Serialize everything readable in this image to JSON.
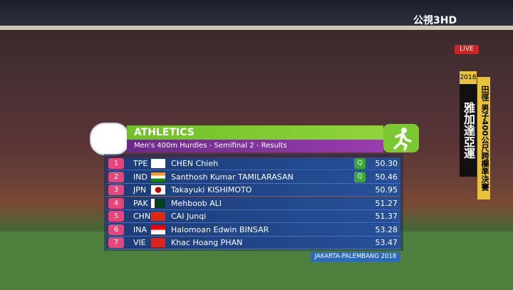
{
  "broadcast": {
    "channel": "公視3HD",
    "live": "LIVE",
    "year": "2018",
    "games": "雅加達亞運",
    "event": "田徑 男子400公尺跨欄準決賽"
  },
  "header": {
    "title": "ATHLETICS",
    "subtitle": "Men's 400m Hurdles - Semifinal 2 - Results"
  },
  "table": {
    "rows": [
      {
        "rank": 1,
        "country": "TPE",
        "name": "CHEN Chieh",
        "qualified": "Q",
        "time": "50.30"
      },
      {
        "rank": 2,
        "country": "IND",
        "name": "Santhosh Kumar TAMILARASAN",
        "qualified": "Q",
        "time": "50.46"
      },
      {
        "rank": 3,
        "country": "JPN",
        "name": "Takayuki KISHIMOTO",
        "time": "50.95"
      },
      {
        "rank": 4,
        "country": "PAK",
        "name": "Mehboob ALI",
        "time": "51.27"
      },
      {
        "rank": 5,
        "country": "CHN",
        "name": "CAI Junqi",
        "time": "51.37"
      },
      {
        "rank": 6,
        "country": "INA",
        "name": "Halomoan Edwin BINSAR",
        "time": "53.28"
      },
      {
        "rank": 7,
        "country": "VIE",
        "name": "Khac Hoang PHAN",
        "time": "53.47"
      }
    ]
  },
  "footer": {
    "label": "JAKARTA-PALEMBANG 2018"
  }
}
